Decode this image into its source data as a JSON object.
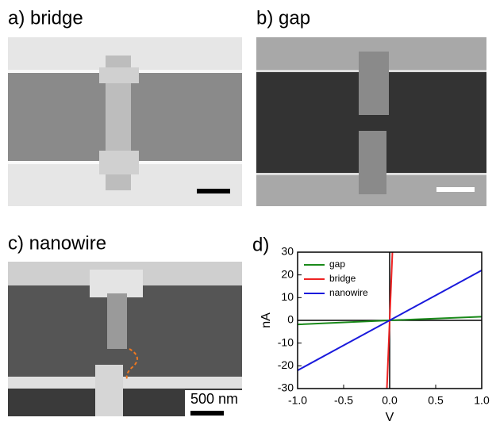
{
  "panels": [
    {
      "label": "a) bridge"
    },
    {
      "label": "b) gap"
    },
    {
      "label": "c) nanowire",
      "scale_bar": "500 nm"
    }
  ],
  "chart_data": {
    "type": "line",
    "panel_label": "d)",
    "xlabel": "V",
    "ylabel": "nA",
    "xlim": [
      -1.0,
      1.0
    ],
    "ylim": [
      -30,
      30
    ],
    "xticks": [
      {
        "value": -1.0,
        "label": "-1.0"
      },
      {
        "value": -0.5,
        "label": "-0.5"
      },
      {
        "value": 0,
        "label": "0.0"
      },
      {
        "value": 0.5,
        "label": "0.5"
      },
      {
        "value": 1.0,
        "label": "1.0"
      }
    ],
    "yticks": [
      -30,
      -20,
      -10,
      0,
      10,
      20,
      30
    ],
    "legend": "upper left",
    "series": [
      {
        "name": "gap",
        "color": "#1a8a1a",
        "x": [
          -1.0,
          0,
          1.0
        ],
        "values": [
          -1.8,
          0,
          1.6
        ]
      },
      {
        "name": "bridge",
        "color": "#ee2222",
        "x": [
          -0.03,
          0.03
        ],
        "values": [
          -30,
          30
        ]
      },
      {
        "name": "nanowire",
        "color": "#1a1adc",
        "x": [
          -1.0,
          -0.5,
          0,
          0.5,
          1.0
        ],
        "values": [
          -22,
          -11,
          0,
          11,
          22
        ]
      }
    ]
  }
}
